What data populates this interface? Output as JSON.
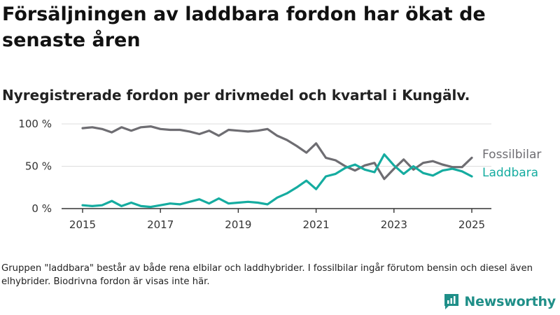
{
  "header": {
    "title": "Försäljningen av laddbara fordon har ökat de senaste åren",
    "subtitle": "Nyregistrerade fordon per drivmedel och kvartal i Kungälv."
  },
  "footer": {
    "note": "Gruppen \"laddbara\" består av både rena elbilar och laddhybrider. I fossilbilar ingår förutom bensin och diesel även elhybrider. Biodrivna fordon är visas inte här.",
    "brand": "Newsworthy",
    "brand_icon": "bar-chart-logo-icon"
  },
  "colors": {
    "fossil": "#6e6d72",
    "laddbara": "#15aca0",
    "gridline": "#dddddd",
    "axis": "#333333",
    "brand": "#1f8f88"
  },
  "chart_data": {
    "type": "line",
    "title": "Försäljningen av laddbara fordon har ökat de senaste åren",
    "subtitle": "Nyregistrerade fordon per drivmedel och kvartal i Kungälv.",
    "xlabel": "",
    "ylabel": "",
    "x": [
      "2015-Q1",
      "2015-Q2",
      "2015-Q3",
      "2015-Q4",
      "2016-Q1",
      "2016-Q2",
      "2016-Q3",
      "2016-Q4",
      "2017-Q1",
      "2017-Q2",
      "2017-Q3",
      "2017-Q4",
      "2018-Q1",
      "2018-Q2",
      "2018-Q3",
      "2018-Q4",
      "2019-Q1",
      "2019-Q2",
      "2019-Q3",
      "2019-Q4",
      "2020-Q1",
      "2020-Q2",
      "2020-Q3",
      "2020-Q4",
      "2021-Q1",
      "2021-Q2",
      "2021-Q3",
      "2021-Q4",
      "2022-Q1",
      "2022-Q2",
      "2022-Q3",
      "2022-Q4",
      "2023-Q1",
      "2023-Q2",
      "2023-Q3",
      "2023-Q4",
      "2024-Q1",
      "2024-Q2",
      "2024-Q3",
      "2024-Q4",
      "2025-Q1"
    ],
    "x_ticks": [
      "2015",
      "2017",
      "2019",
      "2021",
      "2023",
      "2025"
    ],
    "y_ticks": [
      "0 %",
      "50 %",
      "100 %"
    ],
    "ylim": [
      0,
      100
    ],
    "series": [
      {
        "name": "Fossilbilar",
        "values": [
          95,
          96,
          94,
          90,
          96,
          92,
          96,
          97,
          94,
          93,
          93,
          91,
          88,
          92,
          86,
          93,
          92,
          91,
          92,
          94,
          86,
          81,
          74,
          66,
          77,
          60,
          57,
          50,
          45,
          51,
          54,
          35,
          47,
          58,
          46,
          54,
          56,
          52,
          49,
          49,
          60
        ]
      },
      {
        "name": "Laddbara",
        "values": [
          4,
          3,
          4,
          9,
          3,
          7,
          3,
          2,
          4,
          6,
          5,
          8,
          11,
          6,
          12,
          6,
          7,
          8,
          7,
          5,
          13,
          18,
          25,
          33,
          23,
          38,
          41,
          48,
          52,
          46,
          43,
          64,
          51,
          41,
          50,
          42,
          39,
          45,
          47,
          44,
          38
        ]
      }
    ],
    "legend": "direct labels at line ends, right",
    "grid": true
  }
}
